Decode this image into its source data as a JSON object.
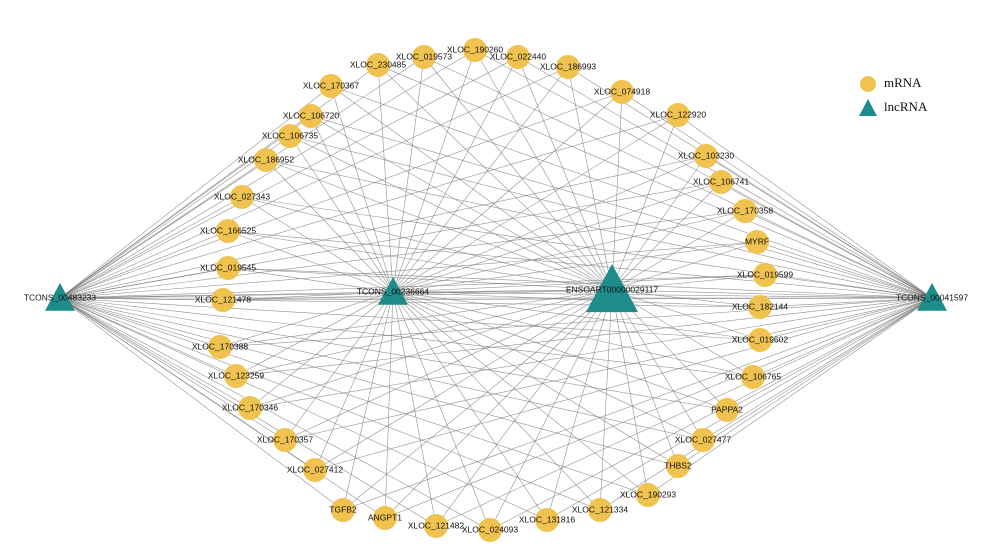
{
  "nodes": [
    {
      "label": "XLOC_190260",
      "type": "mRNA"
    },
    {
      "label": "XLOC_019573",
      "type": "mRNA"
    },
    {
      "label": "XLOC_022440",
      "type": "mRNA"
    },
    {
      "label": "XLOC_230485",
      "type": "mRNA"
    },
    {
      "label": "XLOC_186993",
      "type": "mRNA"
    },
    {
      "label": "XLOC_170367",
      "type": "mRNA"
    },
    {
      "label": "XLOC_074918",
      "type": "mRNA"
    },
    {
      "label": "XLOC_106720",
      "type": "mRNA"
    },
    {
      "label": "XLOC_122920",
      "type": "mRNA"
    },
    {
      "label": "XLOC_106735",
      "type": "mRNA"
    },
    {
      "label": "XLOC_186952",
      "type": "mRNA"
    },
    {
      "label": "XLOC_103230",
      "type": "mRNA"
    },
    {
      "label": "XLOC_106741",
      "type": "mRNA"
    },
    {
      "label": "XLOC_027343",
      "type": "mRNA"
    },
    {
      "label": "XLOC_170358",
      "type": "mRNA"
    },
    {
      "label": "XLOC_166525",
      "type": "mRNA"
    },
    {
      "label": "MYRF",
      "type": "mRNA"
    },
    {
      "label": "XLOC_019545",
      "type": "mRNA"
    },
    {
      "label": "XLOC_019599",
      "type": "mRNA"
    },
    {
      "label": "XLOC_121478",
      "type": "mRNA"
    },
    {
      "label": "XLOC_182144",
      "type": "mRNA"
    },
    {
      "label": "XLOC_170388",
      "type": "mRNA"
    },
    {
      "label": "XLOC_019602",
      "type": "mRNA"
    },
    {
      "label": "XLOC_123259",
      "type": "mRNA"
    },
    {
      "label": "XLOC_106765",
      "type": "mRNA"
    },
    {
      "label": "XLOC_170346",
      "type": "mRNA"
    },
    {
      "label": "PAPPA2",
      "type": "mRNA"
    },
    {
      "label": "XLOC_170357",
      "type": "mRNA"
    },
    {
      "label": "XLOC_027477",
      "type": "mRNA"
    },
    {
      "label": "XLOC_027412",
      "type": "mRNA"
    },
    {
      "label": "THBS2",
      "type": "mRNA"
    },
    {
      "label": "TGFB2",
      "type": "mRNA"
    },
    {
      "label": "XLOC_190293",
      "type": "mRNA"
    },
    {
      "label": "ANGPT1",
      "type": "mRNA"
    },
    {
      "label": "XLOC_121334",
      "type": "mRNA"
    },
    {
      "label": "XLOC_121482",
      "type": "mRNA"
    },
    {
      "label": "XLOC_131816",
      "type": "mRNA"
    },
    {
      "label": "XLOC_024093",
      "type": "mRNA"
    },
    {
      "label": "TCONS_00483233",
      "type": "lncRNA"
    },
    {
      "label": "TCONS_00236664",
      "type": "lncRNA"
    },
    {
      "label": "ENSOART00000029117",
      "type": "lncRNA"
    },
    {
      "label": "TCONS_00041597",
      "type": "lncRNA"
    }
  ],
  "legend": {
    "items": [
      "mRNA",
      "lncRNA"
    ]
  }
}
